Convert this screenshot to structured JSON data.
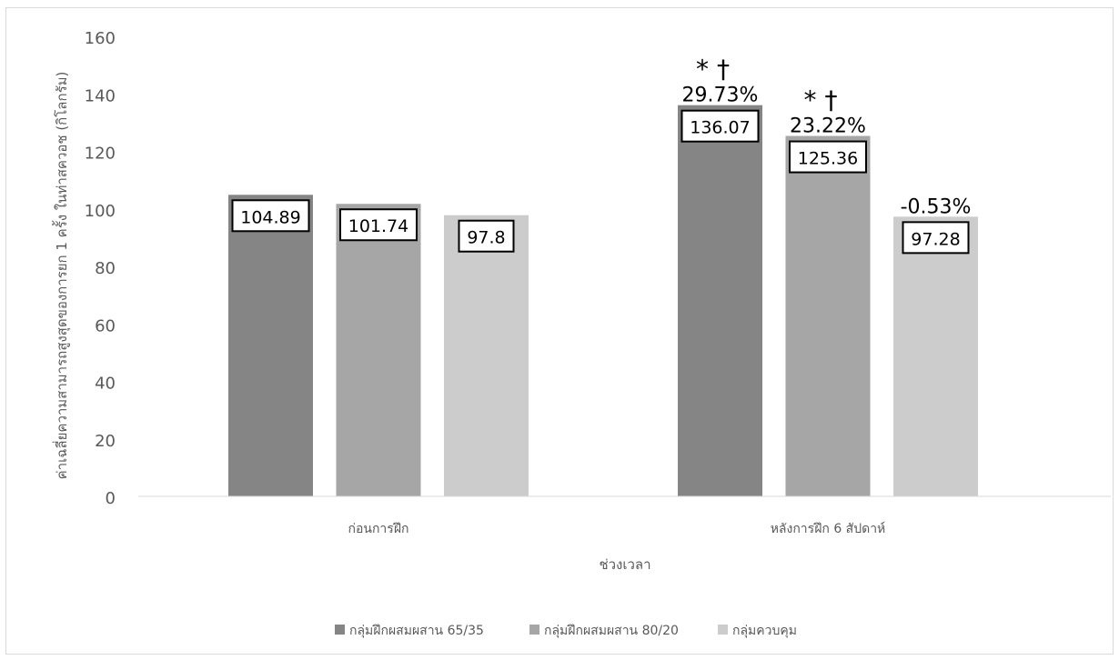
{
  "chart_data": {
    "type": "bar",
    "title": "",
    "xlabel": "ช่วงเวลา",
    "ylabel": "ค่าเฉลี่ยความสามารถสูงสุดของการยก 1 ครั้ง ในท่าสควอช (กิโลกรัม)",
    "ylim": [
      0,
      160
    ],
    "yticks": [
      0,
      20,
      40,
      60,
      80,
      100,
      120,
      140,
      160
    ],
    "grid": false,
    "legend_position": "bottom",
    "categories": [
      "ก่อนการฝึก",
      "หลังการฝึก 6 สัปดาห์"
    ],
    "series": [
      {
        "name": "กลุ่มฝึกผสมผสาน 65/35",
        "color": "#858585",
        "values": [
          104.89,
          136.07
        ],
        "value_labels": [
          "104.89",
          "136.07"
        ],
        "annotations": [
          "",
          "29.73%"
        ],
        "markers": [
          "",
          "* †"
        ]
      },
      {
        "name": "กลุ่มฝึกผสมผสาน 80/20",
        "color": "#a6a6a6",
        "values": [
          101.74,
          125.36
        ],
        "value_labels": [
          "101.74",
          "125.36"
        ],
        "annotations": [
          "",
          "23.22%"
        ],
        "markers": [
          "",
          "* †"
        ]
      },
      {
        "name": "กลุ่มควบคุม",
        "color": "#cccccc",
        "values": [
          97.8,
          97.28
        ],
        "value_labels": [
          "97.8",
          "97.28"
        ],
        "annotations": [
          "",
          "-0.53%"
        ],
        "markers": [
          "",
          ""
        ]
      }
    ]
  }
}
